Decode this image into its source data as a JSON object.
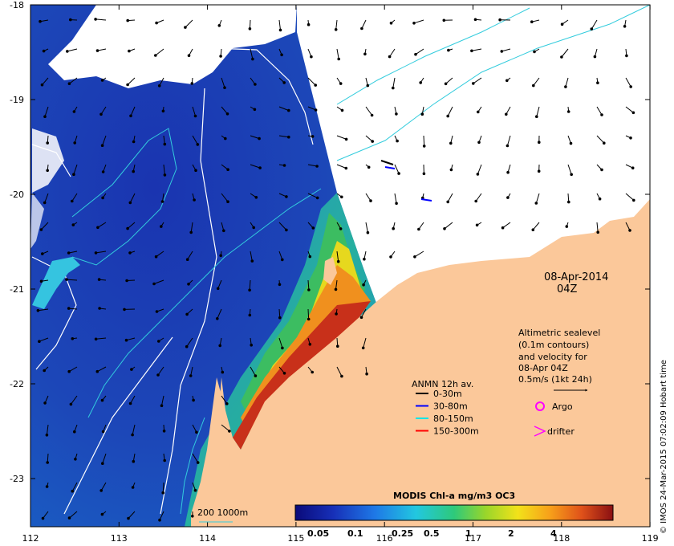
{
  "map": {
    "date": "08-Apr-2014",
    "time": "04Z",
    "x_ticks": [
      "112",
      "113",
      "114",
      "115",
      "116",
      "117",
      "118",
      "119"
    ],
    "y_ticks": [
      "-18",
      "-19",
      "-20",
      "-21",
      "-22",
      "-23"
    ],
    "altimetric_note": {
      "line1": "Altimetric sealevel",
      "line2": "(0.1m contours)",
      "line3": "and velocity for",
      "line4": "08-Apr 04Z",
      "line5": "0.5m/s (1kt 24h)"
    },
    "anmn_legend": {
      "title": "ANMN 12h av.",
      "items": [
        {
          "label": "0-30m",
          "color": "#000000"
        },
        {
          "label": "30-80m",
          "color": "#0000ff"
        },
        {
          "label": "80-150m",
          "color": "#00e5e5"
        },
        {
          "label": "150-300m",
          "color": "#ff0000"
        }
      ]
    },
    "markers": {
      "argo": "Argo",
      "drifter": "drifter",
      "argo_color": "#ff00ff",
      "drifter_color": "#ff00ff"
    },
    "colorbar": {
      "title": "MODIS Chl-a mg/m3 OC3",
      "labels": [
        "0.05",
        "0.1",
        "0.25",
        "0.5",
        "1",
        "2",
        "4"
      ]
    },
    "isobath_label": "200  1000m",
    "credit": "© IMOS 24-Mar-2015 07:02:09 Hobart time",
    "colors": {
      "land": "#fbc89a",
      "ocean_deep": "#1a3fae",
      "contour": "#ffffff",
      "isobath": "#33ccdd",
      "frame": "#000000"
    }
  }
}
